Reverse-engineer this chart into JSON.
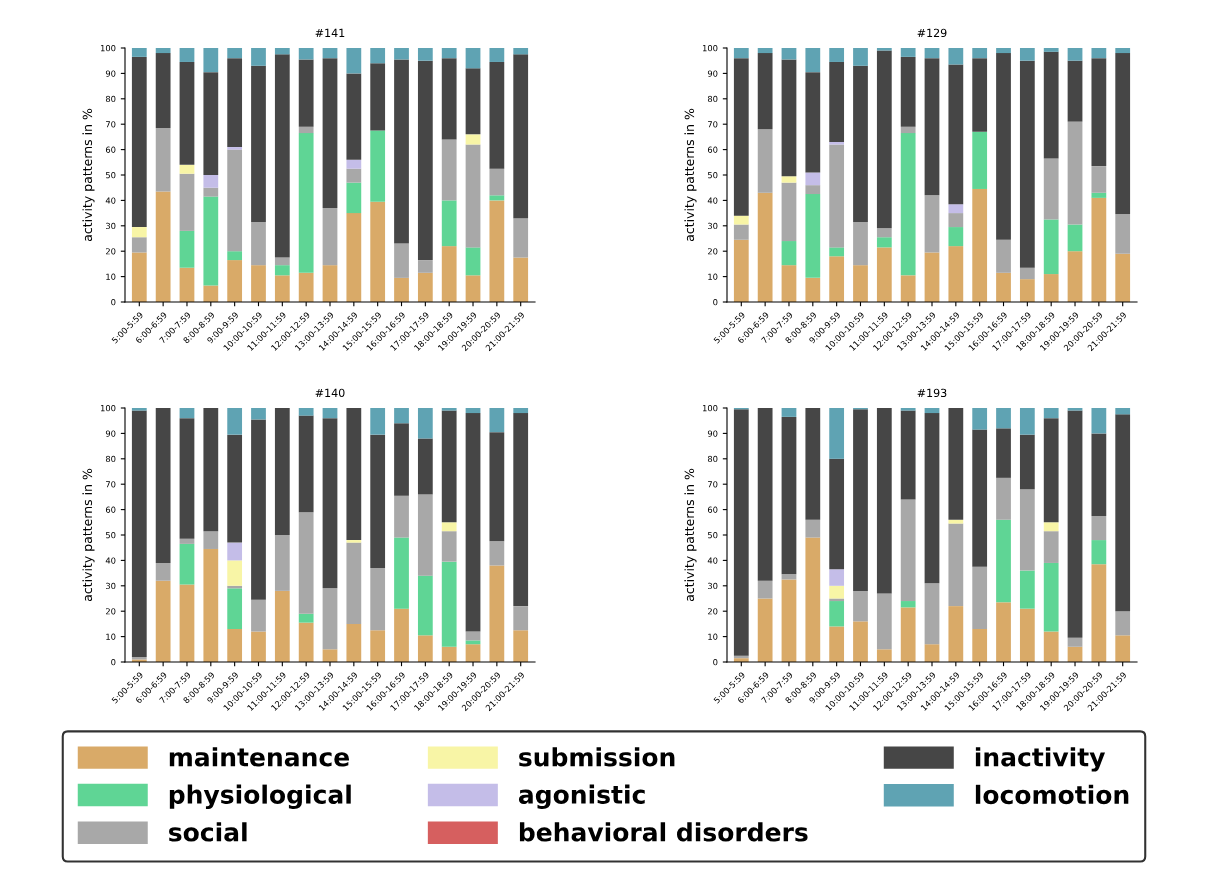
{
  "chart_data": [
    {
      "type": "bar",
      "stacked": true,
      "title": "#141",
      "ylabel": "activity patterns in %",
      "legend": "bottom",
      "categories": [
        "5:00-5:59",
        "6:00-6:59",
        "7:00-7:59",
        "8:00-8:59",
        "9:00-9:59",
        "10:00-10:59",
        "11:00-11:59",
        "12:00-12:59",
        "13:00-13:59",
        "14:00-14:59",
        "15:00-15:59",
        "16:00-16:59",
        "17:00-17:59",
        "18:00-18:59",
        "19:00-19:59",
        "20:00-20:59",
        "21:00-21:59"
      ],
      "ylim": [
        0,
        100
      ],
      "yticks": [
        0,
        10,
        20,
        30,
        40,
        50,
        60,
        70,
        80,
        90,
        100
      ],
      "series": [
        {
          "name": "maintenance",
          "color": "#d9aa68",
          "values": [
            19.5,
            43.5,
            13.5,
            6.5,
            16.5,
            14.5,
            10.5,
            11.5,
            14.5,
            35,
            39.5,
            9.5,
            11.5,
            22,
            10.5,
            40,
            17.5
          ]
        },
        {
          "name": "physiological",
          "color": "#5fd595",
          "values": [
            0,
            0,
            14.5,
            35,
            3.5,
            0,
            4,
            55,
            0,
            12,
            28,
            0,
            0,
            18,
            11,
            2,
            0
          ]
        },
        {
          "name": "social",
          "color": "#a8a8a8",
          "values": [
            6,
            25,
            22.5,
            3.5,
            40,
            17,
            3,
            2.5,
            22.5,
            5.5,
            0,
            13.5,
            5,
            24,
            40.5,
            10.5,
            15.5
          ]
        },
        {
          "name": "submission",
          "color": "#f8f5a6",
          "values": [
            4,
            0,
            3.5,
            0,
            0,
            0,
            0,
            0,
            0,
            0,
            0,
            0,
            0,
            0,
            4,
            0,
            0
          ]
        },
        {
          "name": "agonistic",
          "color": "#c4bde8",
          "values": [
            0,
            0,
            0,
            5,
            1,
            0,
            0,
            0,
            0,
            3.5,
            0,
            0,
            0,
            0,
            0,
            0,
            0
          ]
        },
        {
          "name": "behavioral disorders",
          "color": "#d65f5f",
          "values": [
            0,
            0,
            0,
            0,
            0,
            0,
            0,
            0,
            0,
            0,
            0,
            0,
            0,
            0,
            0,
            0,
            0
          ]
        },
        {
          "name": "inactivity",
          "color": "#464646",
          "values": [
            67,
            29.5,
            40.5,
            40.5,
            35,
            61.5,
            80,
            26.5,
            59,
            34,
            26.5,
            72.5,
            78.5,
            32,
            26,
            42,
            64.5
          ]
        },
        {
          "name": "locomotion",
          "color": "#5fa3b3",
          "values": [
            3.5,
            2,
            5.5,
            9.5,
            4,
            7,
            2.5,
            4.5,
            4,
            10,
            6,
            4.5,
            5,
            4,
            8,
            5.5,
            2.5
          ]
        }
      ]
    },
    {
      "type": "bar",
      "stacked": true,
      "title": "#129",
      "ylabel": "activity patterns in %",
      "categories": [
        "5:00-5:59",
        "6:00-6:59",
        "7:00-7:59",
        "8:00-8:59",
        "9:00-9:59",
        "10:00-10:59",
        "11:00-11:59",
        "12:00-12:59",
        "13:00-13:59",
        "14:00-14:59",
        "15:00-15:59",
        "16:00-16:59",
        "17:00-17:59",
        "18:00-18:59",
        "19:00-19:59",
        "20:00-20:59",
        "21:00-21:59"
      ],
      "ylim": [
        0,
        100
      ],
      "yticks": [
        0,
        10,
        20,
        30,
        40,
        50,
        60,
        70,
        80,
        90,
        100
      ],
      "series": [
        {
          "color": "#d9aa68",
          "values": [
            24.5,
            43,
            14.5,
            9.5,
            18,
            14.5,
            21.5,
            10.5,
            19.5,
            22,
            44.5,
            11.5,
            9,
            11,
            20,
            41,
            19
          ]
        },
        {
          "color": "#5fd595",
          "values": [
            0,
            0,
            9.5,
            33,
            3.5,
            0,
            4,
            56,
            0,
            7.5,
            22.5,
            0,
            0,
            21.5,
            10.5,
            2,
            0
          ]
        },
        {
          "color": "#a8a8a8",
          "values": [
            6,
            25,
            23,
            3.5,
            40.5,
            17,
            3.5,
            2.5,
            22.5,
            5.5,
            0,
            13,
            4.5,
            24,
            40.5,
            10.5,
            15.5
          ]
        },
        {
          "color": "#f8f5a6",
          "values": [
            3.5,
            0,
            2.5,
            0,
            0,
            0,
            0,
            0,
            0,
            0,
            0,
            0,
            0,
            0,
            0,
            0,
            0
          ]
        },
        {
          "color": "#c4bde8",
          "values": [
            0,
            0,
            0,
            5,
            1,
            0,
            0,
            0,
            0,
            3.5,
            0,
            0,
            0,
            0,
            0,
            0,
            0
          ]
        },
        {
          "color": "#d65f5f",
          "values": [
            0,
            0,
            0,
            0,
            0,
            0,
            0,
            0,
            0,
            0,
            0,
            0,
            0,
            0,
            0,
            0,
            0
          ]
        },
        {
          "color": "#464646",
          "values": [
            62,
            30,
            46,
            39.5,
            31.5,
            61.5,
            70,
            27.5,
            54,
            55,
            29,
            73.5,
            81.5,
            42,
            24,
            42.5,
            63.5
          ]
        },
        {
          "color": "#5fa3b3",
          "values": [
            4,
            2,
            4.5,
            9.5,
            5.5,
            7,
            1,
            3.5,
            4,
            6.5,
            4,
            2,
            5,
            1.5,
            5,
            4,
            2
          ]
        }
      ]
    },
    {
      "type": "bar",
      "stacked": true,
      "title": "#140",
      "ylabel": "activity patterns in %",
      "categories": [
        "5:00-5:59",
        "6:00-6:59",
        "7:00-7:59",
        "8:00-8:59",
        "9:00-9:59",
        "10:00-10:59",
        "11:00-11:59",
        "12:00-12:59",
        "13:00-13:59",
        "14:00-14:59",
        "15:00-15:59",
        "16:00-16:59",
        "17:00-17:59",
        "18:00-18:59",
        "19:00-19:59",
        "20:00-20:59",
        "21:00-21:59"
      ],
      "ylim": [
        0,
        100
      ],
      "yticks": [
        0,
        10,
        20,
        30,
        40,
        50,
        60,
        70,
        80,
        90,
        100
      ],
      "series": [
        {
          "color": "#d9aa68",
          "values": [
            1,
            32,
            30.5,
            44.5,
            13,
            12,
            28,
            15.5,
            5,
            15,
            12.5,
            21,
            10.5,
            6,
            7,
            38,
            12.5
          ]
        },
        {
          "color": "#5fd595",
          "values": [
            0,
            0,
            16,
            0,
            16,
            0,
            0,
            3.5,
            0,
            0,
            0,
            28,
            23.5,
            33.5,
            1.5,
            0,
            0
          ]
        },
        {
          "color": "#a8a8a8",
          "values": [
            1,
            7,
            2,
            7,
            1,
            12.5,
            22,
            40,
            24,
            32,
            24.5,
            16.5,
            32,
            12,
            3.5,
            9.5,
            9.5
          ]
        },
        {
          "color": "#f8f5a6",
          "values": [
            0,
            0,
            0,
            0,
            10,
            0,
            0,
            0,
            0,
            1,
            0,
            0,
            0,
            3.5,
            0,
            0,
            0
          ]
        },
        {
          "color": "#c4bde8",
          "values": [
            0,
            0,
            0,
            0,
            7,
            0,
            0,
            0,
            0,
            0,
            0,
            0,
            0,
            0,
            0,
            0,
            0
          ]
        },
        {
          "color": "#d65f5f",
          "values": [
            0,
            0,
            0,
            0,
            0,
            0,
            0,
            0,
            0,
            0,
            0,
            0,
            0,
            0,
            0,
            0,
            0
          ]
        },
        {
          "color": "#464646",
          "values": [
            97,
            61,
            47.5,
            48.5,
            42.5,
            71,
            50,
            38,
            67,
            52,
            52.5,
            28.5,
            22,
            44,
            86,
            43,
            76
          ]
        },
        {
          "color": "#5fa3b3",
          "values": [
            1,
            0,
            4,
            0,
            10.5,
            4.5,
            0,
            3,
            4,
            0,
            10.5,
            6,
            12,
            1,
            2,
            9.5,
            2
          ]
        }
      ]
    },
    {
      "type": "bar",
      "stacked": true,
      "title": "#193",
      "ylabel": "activity patterns in %",
      "categories": [
        "5:00-5:59",
        "6:00-6:59",
        "7:00-7:59",
        "8:00-8:59",
        "9:00-9:59",
        "10:00-10:59",
        "11:00-11:59",
        "12:00-12:59",
        "13:00-13:59",
        "14:00-14:59",
        "15:00-15:59",
        "16:00-16:59",
        "17:00-17:59",
        "18:00-18:59",
        "19:00-19:59",
        "20:00-20:59",
        "21:00-21:59"
      ],
      "ylim": [
        0,
        100
      ],
      "yticks": [
        0,
        10,
        20,
        30,
        40,
        50,
        60,
        70,
        80,
        90,
        100
      ],
      "series": [
        {
          "color": "#d9aa68",
          "values": [
            1.5,
            25,
            32.5,
            49,
            14,
            16,
            5,
            21.5,
            7,
            22,
            13,
            23.5,
            21,
            12,
            6,
            38.5,
            10.5
          ]
        },
        {
          "color": "#5fd595",
          "values": [
            0,
            0,
            0,
            0,
            10,
            0,
            0,
            2.5,
            0,
            0,
            0,
            32.5,
            15,
            27,
            0,
            9.5,
            0
          ]
        },
        {
          "color": "#a8a8a8",
          "values": [
            1,
            7,
            2,
            7,
            1,
            12,
            22,
            40,
            24,
            32.5,
            24.5,
            16.5,
            32,
            12.5,
            3.5,
            9.5,
            9.5
          ]
        },
        {
          "color": "#f8f5a6",
          "values": [
            0,
            0,
            0,
            0,
            5,
            0,
            0,
            0,
            0,
            1.5,
            0,
            0,
            0,
            3.5,
            0,
            0,
            0
          ]
        },
        {
          "color": "#c4bde8",
          "values": [
            0,
            0,
            0,
            0,
            6.5,
            0,
            0,
            0,
            0,
            0,
            0,
            0,
            0,
            0,
            0,
            0,
            0
          ]
        },
        {
          "color": "#d65f5f",
          "values": [
            0,
            0,
            0,
            0,
            0,
            0,
            0,
            0,
            0,
            0,
            0,
            0,
            0,
            0,
            0,
            0,
            0
          ]
        },
        {
          "color": "#464646",
          "values": [
            97,
            68,
            62,
            44,
            43.5,
            71.5,
            73,
            35,
            67,
            44,
            54,
            19.5,
            21.5,
            41,
            89.5,
            32.5,
            77.5
          ]
        },
        {
          "color": "#5fa3b3",
          "values": [
            0.5,
            0,
            3.5,
            0,
            20,
            0.5,
            0,
            1,
            2,
            0,
            8.5,
            8,
            10.5,
            4,
            1,
            10,
            2.5
          ]
        }
      ]
    }
  ]
}
